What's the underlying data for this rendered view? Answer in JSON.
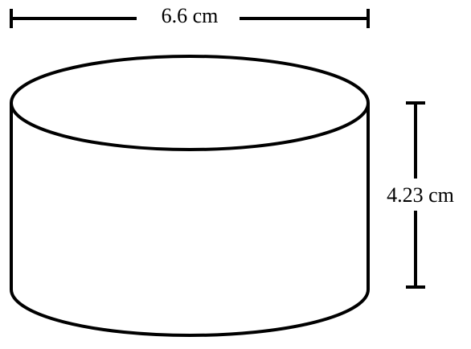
{
  "figure": {
    "shape": "cylinder",
    "diameter_label": "6.6 cm",
    "height_label": "4.23 cm",
    "colors": {
      "stroke": "#000000",
      "background": "#ffffff"
    }
  }
}
